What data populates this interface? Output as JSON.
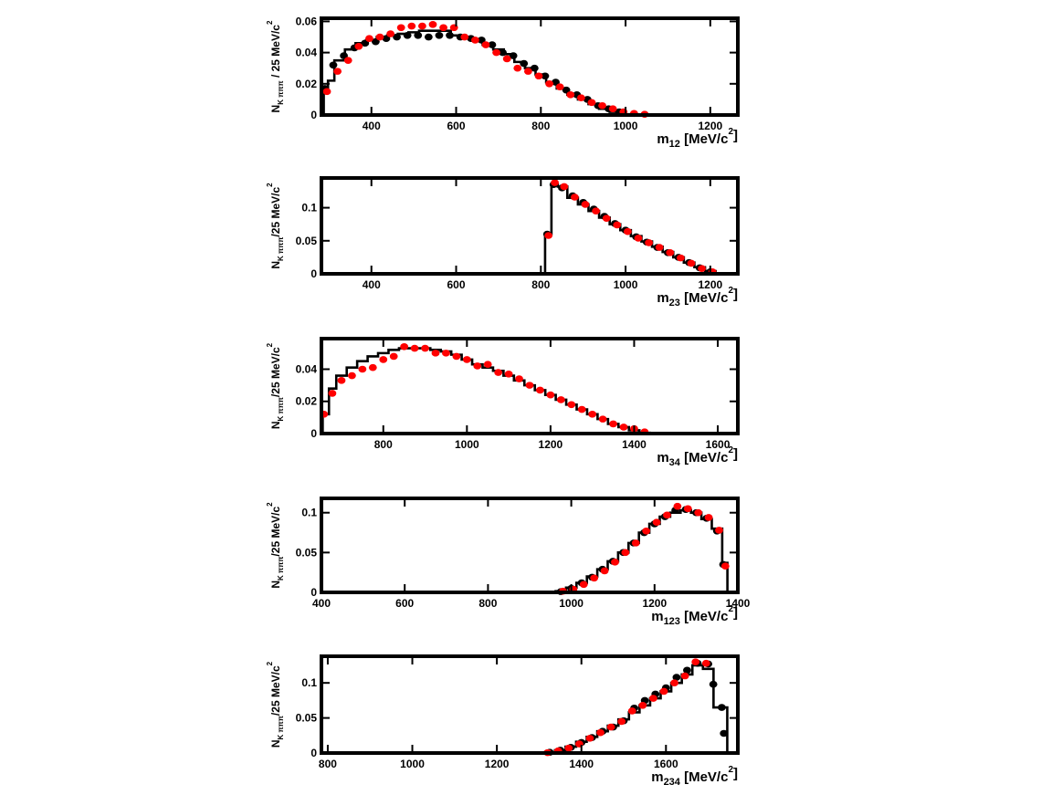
{
  "chart_data": [
    {
      "type": "scatter",
      "xlabel": "m",
      "xlabel_sub": "12",
      "xlabel_unit": " [MeV/c",
      "xlabel_sup": "2",
      "xlabel_end": "]",
      "ylabel": "N",
      "ylabel_sub": "K πππ",
      "ylabel_rest": " / 25 MeV/c",
      "ylabel_sup": "2",
      "xlim": [
        282,
        1265
      ],
      "ylim": [
        0,
        0.062
      ],
      "xticks": [
        400,
        600,
        800,
        1000,
        1200
      ],
      "yticks": [
        0,
        0.02,
        0.04,
        0.06
      ],
      "ytick_labels": [
        "0",
        "0.02",
        "0.04",
        "0.06"
      ],
      "histogram": {
        "edges": [
          287.5,
          297.5,
          312.5,
          337.5,
          362.5,
          387.5,
          412.5,
          437.5,
          462.5,
          487.5,
          512.5,
          537.5,
          562.5,
          587.5,
          612.5,
          637.5,
          662.5,
          687.5,
          712.5,
          737.5,
          762.5,
          787.5,
          812.5,
          837.5,
          862.5,
          887.5,
          912.5,
          937.5,
          962.5,
          987.5,
          1012.5
        ],
        "values": [
          0.016,
          0.022,
          0.035,
          0.042,
          0.046,
          0.048,
          0.05,
          0.051,
          0.052,
          0.053,
          0.054,
          0.054,
          0.054,
          0.051,
          0.05,
          0.048,
          0.045,
          0.042,
          0.039,
          0.034,
          0.03,
          0.026,
          0.021,
          0.017,
          0.013,
          0.01,
          0.007,
          0.004,
          0.002,
          0.0005
        ]
      },
      "series": [
        {
          "color": "#000000",
          "x": [
            290,
            310,
            335,
            360,
            385,
            410,
            435,
            460,
            485,
            510,
            535,
            560,
            585,
            610,
            635,
            660,
            685,
            710,
            735,
            760,
            785,
            810,
            835,
            860,
            885,
            910,
            935,
            960,
            985
          ],
          "y": [
            0.017,
            0.032,
            0.038,
            0.043,
            0.046,
            0.047,
            0.049,
            0.05,
            0.051,
            0.051,
            0.05,
            0.051,
            0.051,
            0.05,
            0.049,
            0.048,
            0.045,
            0.04,
            0.038,
            0.033,
            0.03,
            0.025,
            0.021,
            0.016,
            0.013,
            0.01,
            0.006,
            0.004,
            0.002
          ]
        },
        {
          "color": "#ff0000",
          "x": [
            295,
            320,
            345,
            370,
            395,
            420,
            445,
            470,
            495,
            520,
            545,
            570,
            595,
            620,
            645,
            670,
            695,
            720,
            745,
            770,
            795,
            820,
            845,
            870,
            895,
            920,
            945,
            970,
            995,
            1020,
            1045
          ],
          "y": [
            0.015,
            0.028,
            0.035,
            0.044,
            0.049,
            0.05,
            0.052,
            0.056,
            0.057,
            0.057,
            0.058,
            0.056,
            0.056,
            0.05,
            0.048,
            0.045,
            0.04,
            0.036,
            0.03,
            0.028,
            0.025,
            0.02,
            0.018,
            0.013,
            0.011,
            0.008,
            0.006,
            0.004,
            0.002,
            0.001,
            0.0005
          ]
        }
      ]
    },
    {
      "type": "scatter",
      "xlabel": "m",
      "xlabel_sub": "23",
      "xlabel_unit": " [MeV/c",
      "xlabel_sup": "2",
      "xlabel_end": "]",
      "ylabel": "N",
      "ylabel_sub": "K πππ",
      "ylabel_rest": "/25 MeV/c",
      "ylabel_sup": "2",
      "xlim": [
        282,
        1265
      ],
      "ylim": [
        0,
        0.145
      ],
      "xticks": [
        400,
        600,
        800,
        1000,
        1200
      ],
      "yticks": [
        0,
        0.05,
        0.1
      ],
      "ytick_labels": [
        "0",
        "0.05",
        "0.1"
      ],
      "histogram": {
        "edges": [
          810,
          825,
          840,
          862.5,
          887.5,
          912.5,
          937.5,
          962.5,
          987.5,
          1012.5,
          1037.5,
          1062.5,
          1087.5,
          1112.5,
          1137.5,
          1162.5,
          1187.5,
          1212.5
        ],
        "values": [
          0.06,
          0.135,
          0.132,
          0.115,
          0.105,
          0.095,
          0.085,
          0.075,
          0.066,
          0.057,
          0.049,
          0.041,
          0.033,
          0.025,
          0.017,
          0.01,
          0.004
        ]
      },
      "series": [
        {
          "color": "#000000",
          "x": [
            815,
            830,
            850,
            875,
            900,
            925,
            950,
            975,
            1000,
            1025,
            1050,
            1075,
            1100,
            1125,
            1150,
            1175,
            1200
          ],
          "y": [
            0.06,
            0.135,
            0.13,
            0.118,
            0.108,
            0.098,
            0.087,
            0.076,
            0.066,
            0.056,
            0.048,
            0.04,
            0.032,
            0.025,
            0.017,
            0.009,
            0.003
          ]
        },
        {
          "color": "#ff0000",
          "x": [
            818,
            833,
            855,
            880,
            905,
            930,
            955,
            980,
            1005,
            1030,
            1055,
            1080,
            1105,
            1130,
            1155,
            1180,
            1205
          ],
          "y": [
            0.058,
            0.138,
            0.132,
            0.116,
            0.105,
            0.095,
            0.084,
            0.074,
            0.064,
            0.054,
            0.047,
            0.04,
            0.032,
            0.024,
            0.016,
            0.008,
            0.003
          ]
        }
      ]
    },
    {
      "type": "scatter",
      "xlabel": "m",
      "xlabel_sub": "34",
      "xlabel_unit": " [MeV/c",
      "xlabel_sup": "2",
      "xlabel_end": "]",
      "ylabel": "N",
      "ylabel_sub": "K πππ",
      "ylabel_rest": "/25 MeV/c",
      "ylabel_sup": "2",
      "xlim": [
        652,
        1648
      ],
      "ylim": [
        0,
        0.059
      ],
      "xticks": [
        800,
        1000,
        1200,
        1400,
        1600
      ],
      "yticks": [
        0,
        0.02,
        0.04
      ],
      "ytick_labels": [
        "0",
        "0.02",
        "0.04"
      ],
      "histogram": {
        "edges": [
          655,
          670,
          687.5,
          712.5,
          737.5,
          762.5,
          787.5,
          812.5,
          837.5,
          862.5,
          887.5,
          912.5,
          937.5,
          962.5,
          987.5,
          1012.5,
          1037.5,
          1062.5,
          1087.5,
          1112.5,
          1137.5,
          1162.5,
          1187.5,
          1212.5,
          1237.5,
          1262.5,
          1287.5,
          1312.5,
          1337.5,
          1362.5,
          1387.5,
          1412.5,
          1437.5
        ],
        "values": [
          0.012,
          0.028,
          0.036,
          0.041,
          0.045,
          0.048,
          0.05,
          0.052,
          0.053,
          0.053,
          0.053,
          0.052,
          0.051,
          0.049,
          0.046,
          0.043,
          0.041,
          0.039,
          0.036,
          0.033,
          0.03,
          0.027,
          0.024,
          0.021,
          0.018,
          0.015,
          0.012,
          0.009,
          0.006,
          0.004,
          0.002,
          0.0005
        ]
      },
      "series": [
        {
          "color": "#ff0000",
          "x": [
            658,
            678,
            700,
            725,
            750,
            775,
            800,
            825,
            850,
            875,
            900,
            925,
            950,
            975,
            1000,
            1025,
            1050,
            1075,
            1100,
            1125,
            1150,
            1175,
            1200,
            1225,
            1250,
            1275,
            1300,
            1325,
            1350,
            1375,
            1400,
            1425
          ],
          "y": [
            0.012,
            0.025,
            0.033,
            0.036,
            0.04,
            0.041,
            0.046,
            0.048,
            0.054,
            0.053,
            0.053,
            0.05,
            0.05,
            0.048,
            0.046,
            0.042,
            0.043,
            0.038,
            0.037,
            0.034,
            0.03,
            0.027,
            0.024,
            0.021,
            0.018,
            0.015,
            0.012,
            0.009,
            0.006,
            0.004,
            0.003,
            0.001
          ]
        }
      ]
    },
    {
      "type": "scatter",
      "xlabel": "m",
      "xlabel_sub": "123",
      "xlabel_unit": " [MeV/c",
      "xlabel_sup": "2",
      "xlabel_end": "]",
      "ylabel": "N",
      "ylabel_sub": "K πππ",
      "ylabel_rest": "/25 MeV/c",
      "ylabel_sup": "2",
      "xlim": [
        400,
        1400
      ],
      "ylim": [
        0,
        0.118
      ],
      "xticks": [
        400,
        600,
        800,
        1000,
        1200,
        1400
      ],
      "yticks": [
        0,
        0.05,
        0.1
      ],
      "ytick_labels": [
        "0",
        "0.05",
        "0.1"
      ],
      "histogram": {
        "edges": [
          962.5,
          987.5,
          1012.5,
          1037.5,
          1062.5,
          1087.5,
          1112.5,
          1137.5,
          1162.5,
          1187.5,
          1212.5,
          1237.5,
          1262.5,
          1287.5,
          1312.5,
          1337.5,
          1362.5,
          1375
        ],
        "values": [
          0.0015,
          0.006,
          0.012,
          0.02,
          0.029,
          0.039,
          0.05,
          0.062,
          0.075,
          0.086,
          0.095,
          0.1,
          0.103,
          0.1,
          0.092,
          0.08,
          0.037
        ]
      },
      "series": [
        {
          "color": "#000000",
          "x": [
            975,
            1000,
            1025,
            1050,
            1075,
            1100,
            1125,
            1150,
            1175,
            1200,
            1225,
            1250,
            1275,
            1300,
            1325,
            1350,
            1365
          ],
          "y": [
            0.001,
            0.005,
            0.012,
            0.019,
            0.029,
            0.039,
            0.05,
            0.062,
            0.075,
            0.086,
            0.095,
            0.103,
            0.104,
            0.1,
            0.093,
            0.077,
            0.035
          ]
        },
        {
          "color": "#ff0000",
          "x": [
            980,
            1005,
            1030,
            1055,
            1080,
            1105,
            1130,
            1155,
            1180,
            1205,
            1230,
            1255,
            1280,
            1305,
            1330,
            1355,
            1370
          ],
          "y": [
            0.0015,
            0.004,
            0.01,
            0.018,
            0.027,
            0.038,
            0.05,
            0.062,
            0.077,
            0.088,
            0.097,
            0.108,
            0.105,
            0.1,
            0.094,
            0.078,
            0.033
          ]
        }
      ]
    },
    {
      "type": "scatter",
      "xlabel": "m",
      "xlabel_sub": "234",
      "xlabel_unit": " [MeV/c",
      "xlabel_sup": "2",
      "xlabel_end": "]",
      "ylabel": "N",
      "ylabel_sub": "K πππ",
      "ylabel_rest": "/25 MeV/c",
      "ylabel_sup": "2",
      "xlim": [
        785,
        1770
      ],
      "ylim": [
        0,
        0.138
      ],
      "xticks": [
        800,
        1000,
        1200,
        1400,
        1600
      ],
      "yticks": [
        0,
        0.05,
        0.1
      ],
      "ytick_labels": [
        "0",
        "0.05",
        "0.1"
      ],
      "histogram": {
        "edges": [
          1312.5,
          1337.5,
          1362.5,
          1387.5,
          1412.5,
          1437.5,
          1462.5,
          1487.5,
          1512.5,
          1537.5,
          1562.5,
          1587.5,
          1612.5,
          1637.5,
          1662.5,
          1687.5,
          1712.5,
          1725,
          1745
        ],
        "values": [
          0.001,
          0.004,
          0.009,
          0.016,
          0.023,
          0.031,
          0.039,
          0.048,
          0.058,
          0.068,
          0.078,
          0.088,
          0.1,
          0.112,
          0.125,
          0.12,
          0.065,
          0.065
        ]
      },
      "series": [
        {
          "color": "#000000",
          "x": [
            1325,
            1350,
            1375,
            1400,
            1425,
            1450,
            1475,
            1500,
            1525,
            1550,
            1575,
            1600,
            1625,
            1650,
            1675,
            1700,
            1712,
            1732,
            1737
          ],
          "y": [
            0.001,
            0.004,
            0.008,
            0.015,
            0.022,
            0.031,
            0.037,
            0.046,
            0.064,
            0.075,
            0.084,
            0.093,
            0.108,
            0.118,
            0.128,
            0.127,
            0.098,
            0.065,
            0.028
          ]
        },
        {
          "color": "#ff0000",
          "x": [
            1320,
            1345,
            1370,
            1395,
            1420,
            1445,
            1470,
            1495,
            1520,
            1545,
            1570,
            1595,
            1620,
            1645,
            1670,
            1695
          ],
          "y": [
            0.0005,
            0.003,
            0.007,
            0.013,
            0.021,
            0.029,
            0.037,
            0.045,
            0.06,
            0.068,
            0.078,
            0.088,
            0.1,
            0.11,
            0.13,
            0.128
          ]
        }
      ]
    }
  ]
}
